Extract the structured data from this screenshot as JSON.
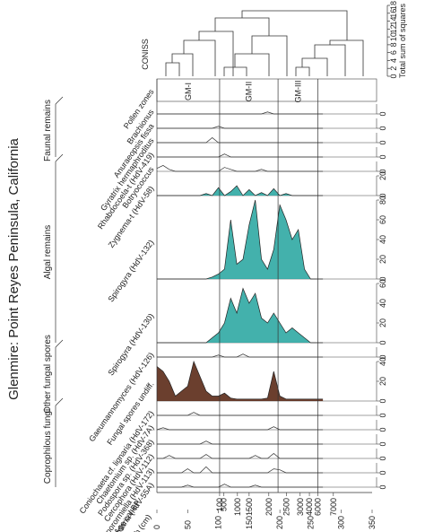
{
  "chart_data": {
    "type": "area",
    "title": "Glenmire: Point Reyes Peninsula, California",
    "x_label": "Depth (cm)",
    "age_label": "Age cal BP",
    "x": [
      0,
      10,
      20,
      30,
      40,
      50,
      60,
      70,
      80,
      90,
      100,
      110,
      120,
      130,
      140,
      150,
      160,
      170,
      180,
      190,
      200,
      210,
      220,
      230,
      240,
      250,
      260,
      270
    ],
    "xlim": [
      0,
      350
    ],
    "xticks": [
      0,
      50,
      100,
      150,
      200,
      250,
      300,
      350
    ],
    "age_ticks": [
      {
        "value": 102,
        "label": "100"
      },
      {
        "value": 109,
        "label": "500"
      },
      {
        "value": 131,
        "label": "1000"
      },
      {
        "value": 150,
        "label": "1500"
      },
      {
        "value": 182,
        "label": "2000"
      },
      {
        "value": 211,
        "label": "2500"
      },
      {
        "value": 233,
        "label": "3000"
      },
      {
        "value": 248,
        "label": "4000"
      },
      {
        "value": 262,
        "label": "6000"
      },
      {
        "value": 287,
        "label": "7000"
      }
    ],
    "groups": [
      {
        "name": "Coprophilous fungi",
        "series": [
          {
            "name": "Sordaria (HdV-55A)",
            "color": "#333333",
            "filled": false,
            "ylim": [
              0,
              10
            ],
            "yticks": [
              0
            ],
            "values": [
              0,
              0,
              0,
              0,
              0,
              2,
              0,
              0,
              0,
              0,
              0,
              3,
              0,
              0,
              0,
              0,
              2,
              0,
              0,
              0,
              0,
              0,
              0,
              0,
              0,
              0,
              0,
              0
            ]
          },
          {
            "name": "Sporormiella (HdV-113)",
            "color": "#333333",
            "filled": false,
            "ylim": [
              0,
              10
            ],
            "yticks": [
              0
            ],
            "values": [
              0,
              0,
              0,
              0,
              0,
              4,
              0,
              0,
              6,
              0,
              0,
              0,
              0,
              0,
              0,
              0,
              0,
              0,
              0,
              4,
              3,
              0,
              0,
              0,
              0,
              0,
              0,
              0
            ]
          },
          {
            "name": "Cercophora (HdV-112)",
            "color": "#333333",
            "filled": false,
            "ylim": [
              0,
              10
            ],
            "yticks": [
              0
            ],
            "values": [
              0,
              0,
              3,
              0,
              0,
              0,
              0,
              0,
              4,
              0,
              0,
              0,
              0,
              0,
              0,
              0,
              3,
              0,
              0,
              5,
              0,
              0,
              0,
              0,
              0,
              0,
              0,
              0
            ]
          },
          {
            "name": "Podospora sp. (HdV-368)",
            "color": "#333333",
            "filled": false,
            "ylim": [
              0,
              10
            ],
            "yticks": [
              0
            ],
            "values": [
              0,
              0,
              0,
              0,
              0,
              0,
              0,
              0,
              3,
              0,
              0,
              0,
              0,
              0,
              0,
              0,
              0,
              0,
              0,
              0,
              0,
              0,
              0,
              0,
              0,
              0,
              0,
              0
            ]
          },
          {
            "name": "Chaetomium sp. (HdV-7A)",
            "color": "#333333",
            "filled": false,
            "ylim": [
              0,
              10
            ],
            "yticks": [
              0
            ],
            "values": [
              0,
              2,
              0,
              0,
              0,
              0,
              0,
              0,
              0,
              0,
              0,
              0,
              0,
              0,
              0,
              0,
              0,
              0,
              0,
              3,
              0,
              0,
              0,
              0,
              0,
              0,
              0,
              0
            ]
          },
          {
            "name": "Coniochaeta cf. lignaria (HdV-172)",
            "color": "#333333",
            "filled": false,
            "ylim": [
              0,
              10
            ],
            "yticks": [
              0
            ],
            "values": [
              0,
              0,
              0,
              0,
              0,
              0,
              3,
              0,
              0,
              0,
              0,
              0,
              0,
              0,
              0,
              0,
              0,
              0,
              0,
              0,
              0,
              0,
              0,
              0,
              0,
              0,
              0,
              0
            ]
          }
        ]
      },
      {
        "name": "Other fungal spores",
        "series": [
          {
            "name": "Fungal spores undiff.",
            "color": "#5b2a17",
            "filled": true,
            "ylim": [
              0,
              40
            ],
            "yticks": [
              0,
              20,
              40
            ],
            "values": [
              35,
              30,
              20,
              5,
              10,
              15,
              40,
              25,
              10,
              5,
              5,
              8,
              3,
              2,
              2,
              2,
              2,
              2,
              3,
              30,
              5,
              2,
              2,
              2,
              2,
              2,
              2,
              2
            ]
          },
          {
            "name": "Gaeumannomyces (HdV-126)",
            "color": "#333333",
            "filled": false,
            "ylim": [
              0,
              10
            ],
            "yticks": [
              0
            ],
            "values": [
              0,
              0,
              0,
              0,
              0,
              0,
              0,
              0,
              0,
              0,
              2,
              0,
              0,
              0,
              3,
              0,
              0,
              0,
              0,
              0,
              0,
              0,
              0,
              0,
              0,
              0,
              0,
              0
            ]
          }
        ]
      },
      {
        "name": "Algal remains",
        "series": [
          {
            "name": "Spirogyra (HdV-130)",
            "color": "#2fa8a3",
            "filled": true,
            "ylim": [
              0,
              60
            ],
            "yticks": [
              0,
              20,
              40,
              60
            ],
            "values": [
              0,
              0,
              0,
              0,
              0,
              0,
              0,
              0,
              0,
              5,
              10,
              20,
              45,
              30,
              55,
              40,
              50,
              25,
              20,
              30,
              20,
              10,
              15,
              10,
              5,
              0,
              0,
              0
            ]
          },
          {
            "name": "Spirogyra (HdV-132)",
            "color": "#2fa8a3",
            "filled": true,
            "ylim": [
              0,
              80
            ],
            "yticks": [
              0,
              20,
              40,
              60,
              80
            ],
            "values": [
              0,
              0,
              0,
              0,
              0,
              0,
              0,
              0,
              0,
              2,
              5,
              10,
              60,
              15,
              20,
              55,
              80,
              20,
              10,
              30,
              75,
              60,
              40,
              50,
              10,
              0,
              0,
              0
            ]
          },
          {
            "name": "Zygnema-t (HdV-58)",
            "color": "#2fa8a3",
            "filled": true,
            "ylim": [
              0,
              20
            ],
            "yticks": [
              0,
              20
            ],
            "values": [
              0,
              0,
              0,
              0,
              0,
              0,
              0,
              0,
              2,
              0,
              8,
              0,
              4,
              10,
              0,
              6,
              0,
              3,
              0,
              7,
              0,
              2,
              0,
              0,
              0,
              0,
              0,
              0
            ]
          },
          {
            "name": "Botryococcus",
            "color": "#333333",
            "filled": false,
            "ylim": [
              0,
              10
            ],
            "yticks": [
              0
            ],
            "values": [
              3,
              6,
              2,
              0,
              0,
              0,
              0,
              0,
              0,
              0,
              0,
              4,
              2,
              0,
              0,
              0,
              0,
              2,
              0,
              0,
              0,
              0,
              0,
              0,
              0,
              0,
              0,
              0
            ]
          }
        ]
      },
      {
        "name": "Faunal remains",
        "series": [
          {
            "name": "Rhabdocoela-t (HdV-419)",
            "color": "#333333",
            "filled": false,
            "ylim": [
              0,
              10
            ],
            "yticks": [
              0
            ],
            "values": [
              0,
              0,
              0,
              0,
              0,
              0,
              0,
              0,
              0,
              0,
              0,
              3,
              0,
              0,
              0,
              0,
              0,
              0,
              0,
              0,
              0,
              0,
              0,
              0,
              0,
              0,
              0,
              0
            ]
          },
          {
            "name": "Gyratrix hermaphroditus",
            "color": "#333333",
            "filled": false,
            "ylim": [
              0,
              10
            ],
            "yticks": [
              0
            ],
            "values": [
              0,
              0,
              0,
              0,
              0,
              0,
              0,
              0,
              0,
              5,
              0,
              0,
              0,
              0,
              0,
              0,
              0,
              0,
              0,
              0,
              0,
              0,
              0,
              0,
              0,
              0,
              0,
              0
            ]
          },
          {
            "name": "Anuraeopsis fissa",
            "color": "#333333",
            "filled": false,
            "ylim": [
              0,
              10
            ],
            "yticks": [
              0
            ],
            "values": [
              0,
              0,
              0,
              0,
              0,
              0,
              0,
              0,
              0,
              0,
              2,
              0,
              0,
              0,
              0,
              0,
              0,
              0,
              0,
              0,
              0,
              0,
              0,
              0,
              0,
              0,
              0,
              0
            ]
          },
          {
            "name": "Brachionus",
            "color": "#333333",
            "filled": false,
            "ylim": [
              0,
              10
            ],
            "yticks": [
              0
            ],
            "values": [
              0,
              0,
              0,
              0,
              0,
              0,
              0,
              0,
              0,
              0,
              0,
              0,
              0,
              0,
              0,
              0,
              0,
              0,
              2,
              0,
              0,
              0,
              0,
              0,
              0,
              0,
              0,
              0
            ]
          }
        ]
      }
    ],
    "zones": {
      "label": "Pollen zones",
      "names": [
        "GM-I",
        "GM-II",
        "GM-III"
      ],
      "boundaries": [
        102,
        197,
        262
      ]
    },
    "coniss": {
      "label": "CONISS",
      "axis_label": "Total sum of squares",
      "ylim": [
        0,
        18
      ],
      "yticks": [
        0,
        2,
        4,
        6,
        8,
        10,
        12,
        14,
        16,
        18
      ]
    }
  }
}
